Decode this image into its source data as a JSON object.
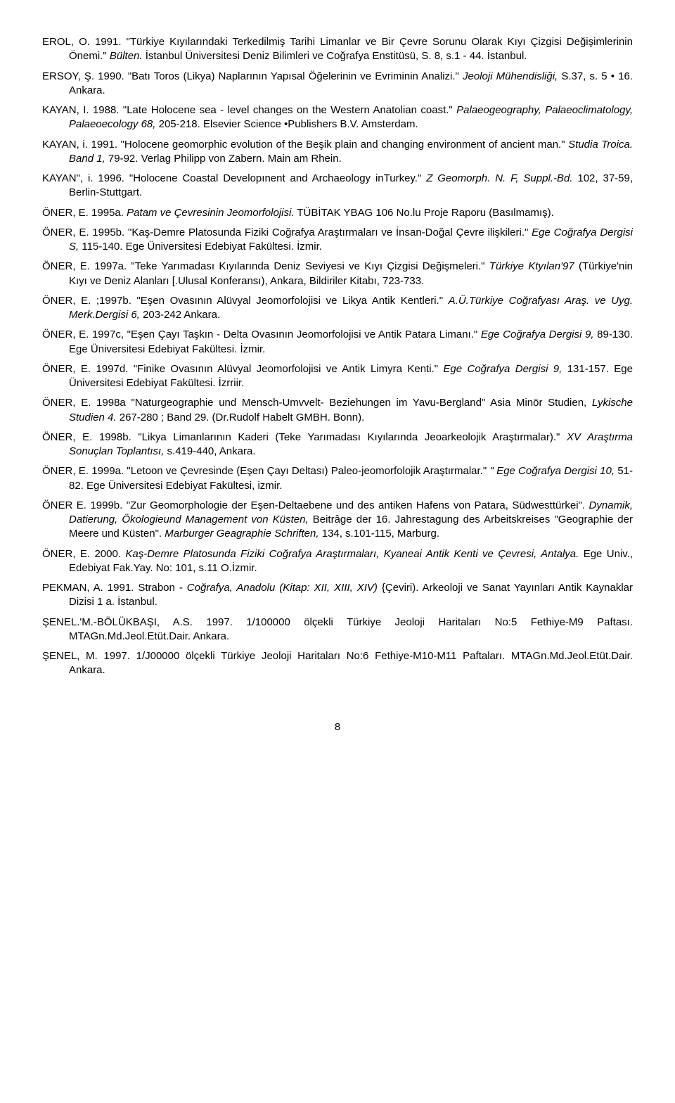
{
  "refs": [
    "EROL, O. 1991. \"Türkiye Kıyılarındaki Terkedilmiş Tarihi Limanlar ve Bir Çevre Sorunu Olarak Kıyı Çizgisi Değişimlerinin Önemi.\" <span class='i'>Bülten.</span> İstanbul Üniversitesi Deniz Bilimleri ve Coğrafya Enstitüsü, S. 8, s.1 - 44. İstanbul.",
    "ERSOY, Ş. 1990. \"Batı Toros (Likya) Naplarının Yapısal Öğelerinin ve Evriminin Analizi.\" <span class='i'>Jeoloji Mühendisliği,</span> S.37, s. 5 • 16. Ankara.",
    "KAYAN, I. 1988. \"Late Holocene sea - level changes on the Western Anatolian coast.\" <span class='i'>Palaeogeography, Palaeoclimatology, Palaeoecology 68,</span> 205-218. Elsevier Science •Publishers B.V. Amsterdam.",
    "KAYAN, i. 1991. \"Holocene geomorphic evolution of the Beşik plain and changing environment of ancient man.\" <span class='i'>Studia Troica. Band 1,</span> 79-92. Verlag Philipp von Zabern. Main am Rhein.",
    "KAYAN\", i. 1996. \"Holocene Coastal Developınent and Archaeology inTurkey.\" <span class='i'>Z Geomorph. N. F, Suppl.-Bd.</span> 102, 37-59, Berlin-Stuttgart.",
    "ÖNER, E. 1995a. <span class='i'>Patam ve Çevresinin Jeomorfolojisi.</span> TÜBİTAK YBAG 106 No.lu Proje Raporu (Basılmamış).",
    "ÖNER, E. 1995b. \"Kaş-Demre Platosunda Fiziki Coğrafya Araştırmaları ve İnsan-Doğal Çevre ilişkileri.\" <span class='i'>Ege Coğrafya Dergisi S,</span> 115-140. Ege Üniversitesi Edebiyat Fakültesi. İzmir.",
    "ÖNER, E. 1997a. \"Teke Yarımadası Kıyılarında Deniz Seviyesi ve Kıyı Çizgisi Değişmeleri.\" <span class='i'>Türkiye Ktyılan'97</span> (Türkiye'nin Kıyı ve Deniz Alanları [.Ulusal Konferansı), Ankara, Bildiriler Kitabı, 723-733.",
    "ÖNER, E. ;1997b. \"Eşen Ovasının Alüvyal Jeomorfolojisi ve Likya Antik Kentleri.\" <span class='i'>A.Ü.Türkiye Coğrafyası Araş. ve Uyg. Merk.Dergisi 6,</span> 203-242 Ankara.",
    "ÖNER, E. 1997c, \"Eşen Çayı Taşkın - Delta Ovasının Jeomorfolojisi ve Antik Patara Limanı.\" <span class='i'>Ege Coğrafya Dergisi 9,</span> 89-130. Ege Üniversitesi Edebiyat Fakültesi. İzmir.",
    "ÖNER, E. 1997d. \"Finike Ovasının Alüvyal Jeomorfolojisi ve Antik Limyra Kenti.\" <span class='i'>Ege Coğrafya Dergisi 9,</span> 131-157. Ege Üniversitesi Edebiyat Fakültesi. İzrriir.",
    "ÖNER, E. 1998a \"Naturgeographie und Mensch-Umvvelt- Beziehungen im Yavu-Bergland\" Asia Minör Studien, <span class='i'>Lykische Studien 4.</span> 267-280 ; Band 29. (Dr.Rudolf Habelt GMBH. Bonn).",
    "ÖNER, E. 1998b. \"Likya Limanlarının Kaderi (Teke Yarımadası Kıyılarında Jeoarkeolojik Araştırmalar).\" <span class='i'>XV Araştırma Sonuçlan Toplantısı,</span> s.419-440, Ankara.",
    "ÖNER, E. 1999a. \"Letoon ve Çevresinde (Eşen Çayı Deltası) Paleo-jeomorfolojik Araştırmalar.\" <span class='i'>\" Ege Coğrafya Dergisi 10,</span> 51-82. Ege Üniversitesi Edebiyat Fakültesi, izmir.",
    "ÖNER E. 1999b. \"Zur Geomorphologie der Eşen-Deltaebene und des antiken Hafens von Patara, Südwesttürkei\". <span class='i'>Dynamik, Datierung, Ökologieund Management von Küsten,</span> Beitrâge der 16. Jahrestagung des Arbeitskreises \"Geographie der Meere und Küsten\". <span class='i'>Marburger Geagraphie Schriften,</span> 134, s.101-115, Marburg.",
    "ÖNER, E. 2000. <span class='i'>Kaş-Demre Platosunda Fiziki Coğrafya Araştırmaları, Kyaneai Antik Kenti ve Çevresi, Antalya.</span> Ege Univ., Edebiyat Fak.Yay. No: 101, s.11 O.İzmir.",
    "PEKMAN, A. 1991. Strabon - <span class='i'>Coğrafya, Anadolu (Kitap: XII, XIII, XIV)</span> {Çeviri). Arkeoloji ve Sanat Yayınları Antik Kaynaklar Dizisi 1 a. İstanbul.",
    "ŞENEL.'M.-BÖLÜKBAŞI, A.S. 1997. 1/100000 ölçekli Türkiye Jeoloji Haritaları No:5 Fethiye-M9 Paftası. MTAGn.Md.Jeol.Etüt.Dair. Ankara.",
    "ŞENEL, M. 1997. 1/J00000 ölçekli Türkiye Jeoloji Haritaları No:6 Fethiye-M10-M11 Paftaları. MTAGn.Md.Jeol.Etüt.Dair. Ankara."
  ],
  "page_number": "8"
}
